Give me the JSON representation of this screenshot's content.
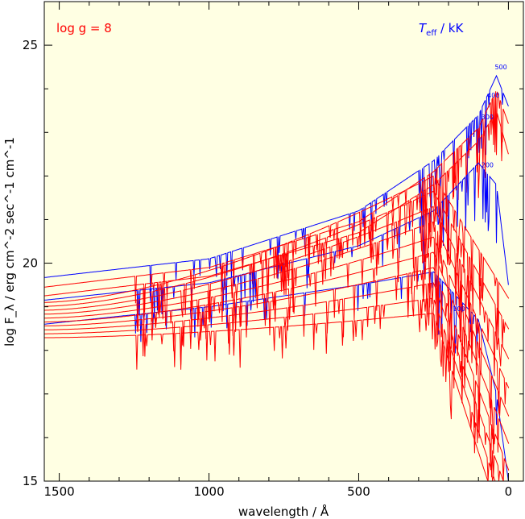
{
  "chart_data": {
    "type": "line",
    "title": "",
    "xlabel": "wavelength / Å",
    "ylabel": "log F_λ / erg cm^-2 sec^-1 cm^-1",
    "xlim": [
      1550,
      -50
    ],
    "ylim": [
      15,
      26
    ],
    "x_ticks": [
      "1500",
      "1000",
      "500",
      "0"
    ],
    "y_ticks": [
      "15",
      "20",
      "25"
    ],
    "grid": false,
    "background": "#ffffe3",
    "annotations": {
      "gravity": "log g = 8",
      "teff_unit": "T",
      "teff_sub": "eff",
      "teff_rest": " / kK"
    },
    "curve_labels": [
      "500",
      "400",
      "300",
      "200",
      "100"
    ],
    "colors": {
      "blue": "#0000ff",
      "red": "#ff0000"
    },
    "series": [
      {
        "name": "500",
        "color": "blue",
        "teff": 500,
        "values": {
          "1550": 19.67,
          "1000": 20.1,
          "500": 21.2,
          "250": 22.35,
          "100": 23.4,
          "40": 24.3,
          "0": 23.6
        }
      },
      {
        "name": "400",
        "color": "red",
        "teff": 400,
        "values": {
          "1550": 19.45,
          "1000": 19.9,
          "500": 20.95,
          "250": 22.1,
          "100": 23.1,
          "40": 23.98,
          "0": 23.2
        }
      },
      {
        "name": "300",
        "color": "red",
        "teff": 300,
        "values": {
          "1550": 19.25,
          "1000": 19.7,
          "500": 20.7,
          "250": 21.8,
          "100": 22.8,
          "40": 23.5,
          "0": 22.5
        }
      },
      {
        "name": "200",
        "color": "blue",
        "teff": 200,
        "values": {
          "1550": 19.15,
          "1000": 19.55,
          "500": 20.4,
          "250": 21.2,
          "100": 22.3,
          "40": 21.8,
          "0": 19.5
        }
      },
      {
        "name": "100",
        "color": "blue",
        "teff": 100,
        "values": {
          "1550": 18.6,
          "1000": 19.0,
          "500": 19.5,
          "250": 19.8,
          "100": 18.7,
          "40": 17.0,
          "0": 15.0
        }
      }
    ]
  }
}
